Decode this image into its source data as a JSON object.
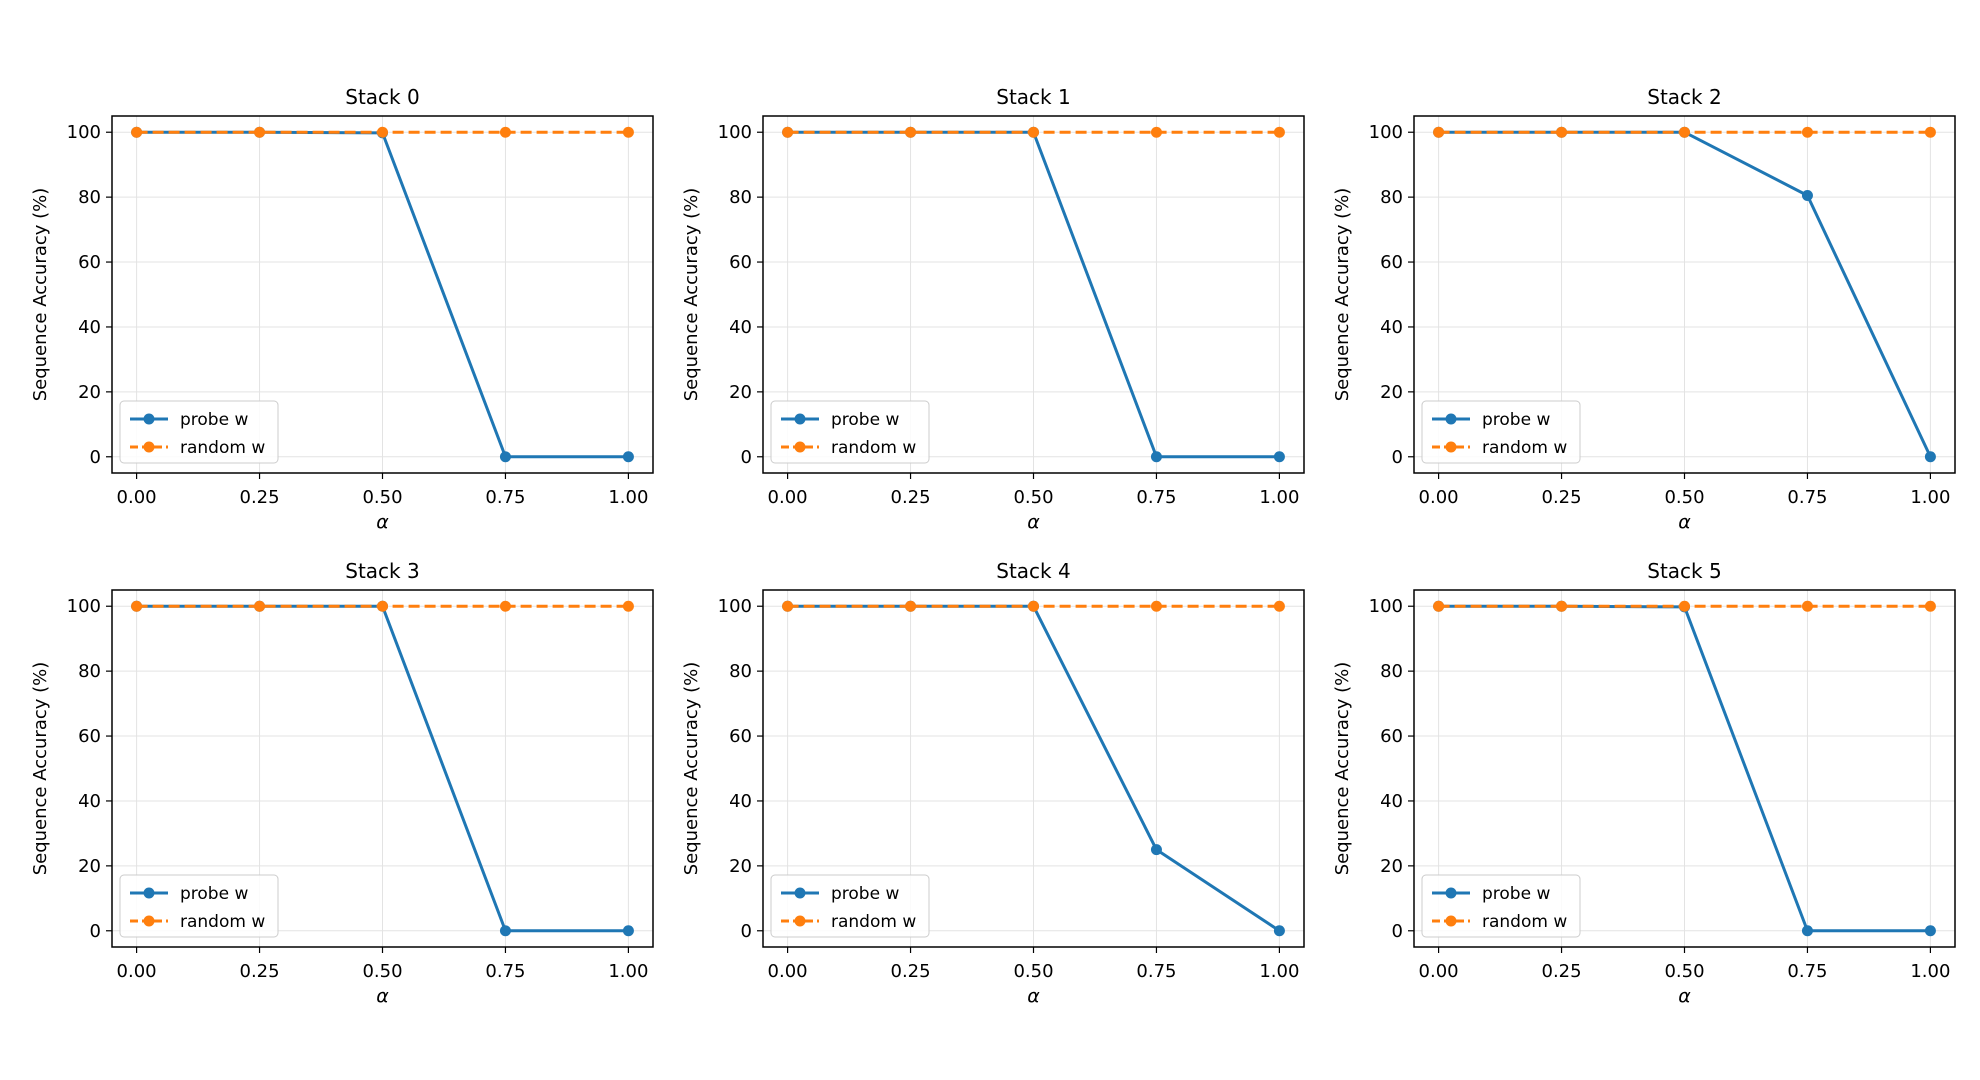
{
  "chart_data": [
    {
      "type": "line",
      "title": "Stack 0",
      "xlabel": "α",
      "ylabel": "Sequence Accuracy (%)",
      "x": [
        0.0,
        0.25,
        0.5,
        0.75,
        1.0
      ],
      "xticks": [
        "0.00",
        "0.25",
        "0.50",
        "0.75",
        "1.00"
      ],
      "yticks": [
        "0",
        "20",
        "40",
        "60",
        "80",
        "100"
      ],
      "xlim": [
        -0.05,
        1.05
      ],
      "ylim": [
        -5,
        105
      ],
      "grid": true,
      "legend": "lower-left",
      "series": [
        {
          "name": "probe w",
          "values": [
            100,
            100,
            99.8,
            0,
            0
          ],
          "color": "#1f77b4",
          "dash": "solid"
        },
        {
          "name": "random w",
          "values": [
            100,
            100,
            100,
            100,
            100
          ],
          "color": "#ff7f0e",
          "dash": "dashed"
        }
      ]
    },
    {
      "type": "line",
      "title": "Stack 1",
      "xlabel": "α",
      "ylabel": "Sequence Accuracy (%)",
      "x": [
        0.0,
        0.25,
        0.5,
        0.75,
        1.0
      ],
      "xticks": [
        "0.00",
        "0.25",
        "0.50",
        "0.75",
        "1.00"
      ],
      "yticks": [
        "0",
        "20",
        "40",
        "60",
        "80",
        "100"
      ],
      "xlim": [
        -0.05,
        1.05
      ],
      "ylim": [
        -5,
        105
      ],
      "grid": true,
      "legend": "lower-left",
      "series": [
        {
          "name": "probe w",
          "values": [
            100,
            100,
            100,
            0,
            0
          ],
          "color": "#1f77b4",
          "dash": "solid"
        },
        {
          "name": "random w",
          "values": [
            100,
            100,
            100,
            100,
            100
          ],
          "color": "#ff7f0e",
          "dash": "dashed"
        }
      ]
    },
    {
      "type": "line",
      "title": "Stack 2",
      "xlabel": "α",
      "ylabel": "Sequence Accuracy (%)",
      "x": [
        0.0,
        0.25,
        0.5,
        0.75,
        1.0
      ],
      "xticks": [
        "0.00",
        "0.25",
        "0.50",
        "0.75",
        "1.00"
      ],
      "yticks": [
        "0",
        "20",
        "40",
        "60",
        "80",
        "100"
      ],
      "xlim": [
        -0.05,
        1.05
      ],
      "ylim": [
        -5,
        105
      ],
      "grid": true,
      "legend": "lower-left",
      "series": [
        {
          "name": "probe w",
          "values": [
            100,
            100,
            100,
            80.5,
            0
          ],
          "color": "#1f77b4",
          "dash": "solid"
        },
        {
          "name": "random w",
          "values": [
            100,
            100,
            100,
            100,
            100
          ],
          "color": "#ff7f0e",
          "dash": "dashed"
        }
      ]
    },
    {
      "type": "line",
      "title": "Stack 3",
      "xlabel": "α",
      "ylabel": "Sequence Accuracy (%)",
      "x": [
        0.0,
        0.25,
        0.5,
        0.75,
        1.0
      ],
      "xticks": [
        "0.00",
        "0.25",
        "0.50",
        "0.75",
        "1.00"
      ],
      "yticks": [
        "0",
        "20",
        "40",
        "60",
        "80",
        "100"
      ],
      "xlim": [
        -0.05,
        1.05
      ],
      "ylim": [
        -5,
        105
      ],
      "grid": true,
      "legend": "lower-left",
      "series": [
        {
          "name": "probe w",
          "values": [
            100,
            100,
            100,
            0,
            0
          ],
          "color": "#1f77b4",
          "dash": "solid"
        },
        {
          "name": "random w",
          "values": [
            100,
            100,
            100,
            100,
            100
          ],
          "color": "#ff7f0e",
          "dash": "dashed"
        }
      ]
    },
    {
      "type": "line",
      "title": "Stack 4",
      "xlabel": "α",
      "ylabel": "Sequence Accuracy (%)",
      "x": [
        0.0,
        0.25,
        0.5,
        0.75,
        1.0
      ],
      "xticks": [
        "0.00",
        "0.25",
        "0.50",
        "0.75",
        "1.00"
      ],
      "yticks": [
        "0",
        "20",
        "40",
        "60",
        "80",
        "100"
      ],
      "xlim": [
        -0.05,
        1.05
      ],
      "ylim": [
        -5,
        105
      ],
      "grid": true,
      "legend": "lower-left",
      "series": [
        {
          "name": "probe w",
          "values": [
            100,
            100,
            100,
            25,
            0
          ],
          "color": "#1f77b4",
          "dash": "solid"
        },
        {
          "name": "random w",
          "values": [
            100,
            100,
            100,
            100,
            100
          ],
          "color": "#ff7f0e",
          "dash": "dashed"
        }
      ]
    },
    {
      "type": "line",
      "title": "Stack 5",
      "xlabel": "α",
      "ylabel": "Sequence Accuracy (%)",
      "x": [
        0.0,
        0.25,
        0.5,
        0.75,
        1.0
      ],
      "xticks": [
        "0.00",
        "0.25",
        "0.50",
        "0.75",
        "1.00"
      ],
      "yticks": [
        "0",
        "20",
        "40",
        "60",
        "80",
        "100"
      ],
      "xlim": [
        -0.05,
        1.05
      ],
      "ylim": [
        -5,
        105
      ],
      "grid": true,
      "legend": "lower-left",
      "series": [
        {
          "name": "probe w",
          "values": [
            100,
            100,
            99.8,
            0,
            0
          ],
          "color": "#1f77b4",
          "dash": "solid"
        },
        {
          "name": "random w",
          "values": [
            100,
            100,
            100,
            100,
            100
          ],
          "color": "#ff7f0e",
          "dash": "dashed"
        }
      ]
    }
  ]
}
